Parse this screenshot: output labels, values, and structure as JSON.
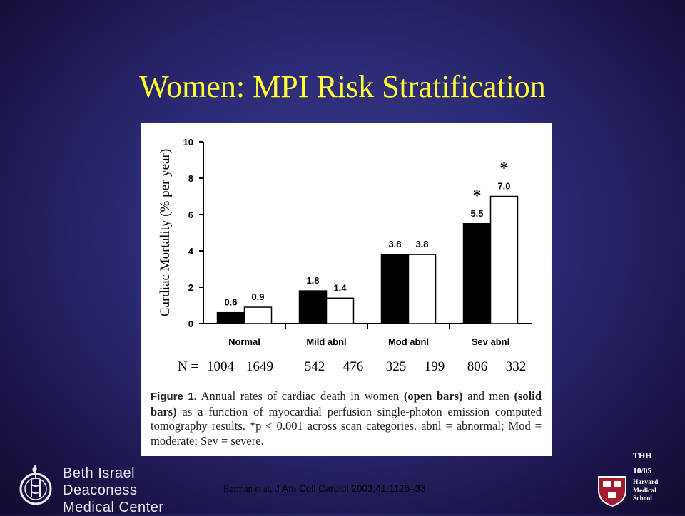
{
  "slide": {
    "title": "Women: MPI Risk Stratification",
    "author_initials": "THH",
    "date": "10/05",
    "institution_left": [
      "Beth Israel Deaconess",
      "Medical Center"
    ],
    "institution_right": [
      "Harvard",
      "Medical",
      "School"
    ],
    "citation": {
      "authors": "Berman ",
      "etal": "et al",
      "journal": ", J Am Coll Cardiol 2003;41:1125–33"
    }
  },
  "caption": {
    "label": "Figure 1.",
    "part1": " Annual rates of cardiac death in women ",
    "bold1": "(open bars)",
    "part2": " and men ",
    "bold2": "(solid bars)",
    "part3": " as a function of myocardial perfusion single-photon emission computed tomography results. *p < 0.001 across scan categories. abnl = abnormal; Mod = moderate; Sev = severe."
  },
  "chart_data": {
    "type": "bar",
    "ylabel": "Cardiac Mortality (% per year)",
    "xlabel": "",
    "ylim": [
      0,
      10
    ],
    "yticks": [
      0,
      2,
      4,
      6,
      8,
      10
    ],
    "categories": [
      "Normal",
      "Mild abnl",
      "Mod abnl",
      "Sev abnl"
    ],
    "series": [
      {
        "name": "solid bars",
        "color": "#000000",
        "values": [
          0.6,
          1.8,
          3.8,
          5.5
        ],
        "labels": [
          "0.6",
          "1.8",
          "3.8",
          "5.5"
        ]
      },
      {
        "name": "open bars",
        "color": "#ffffff",
        "values": [
          0.9,
          1.4,
          3.8,
          7.0
        ],
        "labels": [
          "0.9",
          "1.4",
          "3.8",
          "7.0"
        ]
      }
    ],
    "significance": [
      {
        "category": "Sev abnl",
        "series": 0,
        "mark": "*"
      },
      {
        "category": "Sev abnl",
        "series": 1,
        "mark": "*"
      }
    ],
    "n_prefix": "N =",
    "n_values": [
      [
        "1004",
        "1649"
      ],
      [
        "542",
        "476"
      ],
      [
        "325",
        "199"
      ],
      [
        "806",
        "332"
      ]
    ],
    "grid": false
  },
  "colors": {
    "title": "#ffff33",
    "background": "#2c2a74",
    "figure_bg": "#ffffff"
  }
}
